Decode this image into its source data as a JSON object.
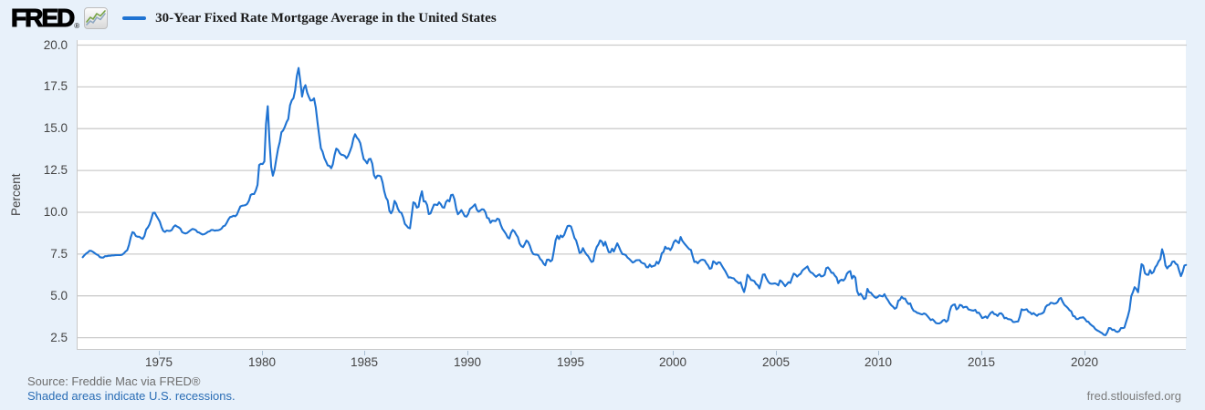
{
  "header": {
    "logo_text": "FRED",
    "logo_reg": "®",
    "legend_label": "30-Year Fixed Rate Mortgage Average in the United States"
  },
  "footer": {
    "source": "Source: Freddie Mac via FRED®",
    "note": "Shaded areas indicate U.S. recessions.",
    "site": "fred.stlouisfed.org"
  },
  "colors": {
    "line_blue": "#1f73d2",
    "link_blue": "#2a6db5",
    "background": "#e8f1fa",
    "grid": "#cccccc",
    "axis_text": "#444444"
  },
  "chart_data": {
    "type": "line",
    "title": "30-Year Fixed Rate Mortgage Average in the United States",
    "ylabel": "Percent",
    "xlabel": "",
    "grid": "horizontal",
    "legend_position": "top-left",
    "xlim": [
      1971.0,
      2024.95
    ],
    "ylim": [
      1.77,
      20.3
    ],
    "yticks": [
      "2.5",
      "5.0",
      "7.5",
      "10.0",
      "12.5",
      "15.0",
      "17.5",
      "20.0"
    ],
    "xticks": [
      "1975",
      "1980",
      "1985",
      "1990",
      "1995",
      "2000",
      "2005",
      "2010",
      "2015",
      "2020"
    ],
    "series": [
      {
        "name": "30-Year Fixed Rate Mortgage Average in the United States",
        "color": "#1f73d2",
        "units": "Percent",
        "start_year": 1971.25,
        "interval_years": 0.0833333,
        "values": [
          7.31,
          7.43,
          7.53,
          7.6,
          7.7,
          7.69,
          7.63,
          7.55,
          7.48,
          7.44,
          7.32,
          7.29,
          7.29,
          7.37,
          7.37,
          7.4,
          7.4,
          7.42,
          7.42,
          7.43,
          7.44,
          7.44,
          7.44,
          7.46,
          7.54,
          7.65,
          7.73,
          8.05,
          8.5,
          8.81,
          8.77,
          8.58,
          8.54,
          8.54,
          8.46,
          8.41,
          8.58,
          8.97,
          9.09,
          9.28,
          9.59,
          9.96,
          9.98,
          9.79,
          9.62,
          9.43,
          9.1,
          8.89,
          8.82,
          8.91,
          8.89,
          8.89,
          8.94,
          9.13,
          9.22,
          9.15,
          9.1,
          9.02,
          8.81,
          8.76,
          8.73,
          8.77,
          8.85,
          8.93,
          9.0,
          8.98,
          8.93,
          8.81,
          8.79,
          8.72,
          8.67,
          8.69,
          8.75,
          8.83,
          8.86,
          8.94,
          8.94,
          8.9,
          8.92,
          8.92,
          8.96,
          9.02,
          9.16,
          9.2,
          9.36,
          9.57,
          9.71,
          9.74,
          9.79,
          9.76,
          9.86,
          10.11,
          10.35,
          10.39,
          10.41,
          10.43,
          10.5,
          10.69,
          11.04,
          11.09,
          11.09,
          11.3,
          11.64,
          12.83,
          12.9,
          12.88,
          13.04,
          15.28,
          16.35,
          14.26,
          12.71,
          12.19,
          12.56,
          13.2,
          13.79,
          14.21,
          14.79,
          14.9,
          15.13,
          15.4,
          15.58,
          16.4,
          16.7,
          16.83,
          17.29,
          18.16,
          18.63,
          17.83,
          16.92,
          17.4,
          17.6,
          17.16,
          16.89,
          16.68,
          16.7,
          16.82,
          16.27,
          15.43,
          14.61,
          13.83,
          13.62,
          13.25,
          13.04,
          12.8,
          12.78,
          12.63,
          12.87,
          13.42,
          13.81,
          13.73,
          13.54,
          13.44,
          13.42,
          13.37,
          13.23,
          13.39,
          13.65,
          13.94,
          14.42,
          14.67,
          14.47,
          14.35,
          14.13,
          13.64,
          13.18,
          13.08,
          12.92,
          13.17,
          13.2,
          12.91,
          12.22,
          12.03,
          12.19,
          12.19,
          12.14,
          11.78,
          11.26,
          10.88,
          10.71,
          10.08,
          9.94,
          10.14,
          10.68,
          10.51,
          10.2,
          10.01,
          9.97,
          9.7,
          9.31,
          9.2,
          9.08,
          9.04,
          9.83,
          10.6,
          10.54,
          10.28,
          10.33,
          10.89,
          11.26,
          10.65,
          10.65,
          10.43,
          9.89,
          9.93,
          10.2,
          10.46,
          10.46,
          10.43,
          10.6,
          10.48,
          10.3,
          10.27,
          10.61,
          10.73,
          10.65,
          11.03,
          11.05,
          10.77,
          10.2,
          9.88,
          9.99,
          10.13,
          9.95,
          9.77,
          9.74,
          9.9,
          10.2,
          10.27,
          10.37,
          10.48,
          10.16,
          10.04,
          10.1,
          10.18,
          10.17,
          10.01,
          9.67,
          9.64,
          9.37,
          9.5,
          9.49,
          9.47,
          9.62,
          9.58,
          9.24,
          9.01,
          8.86,
          8.71,
          8.5,
          8.43,
          8.76,
          8.94,
          8.85,
          8.67,
          8.51,
          8.13,
          7.98,
          7.92,
          8.09,
          8.31,
          8.22,
          7.99,
          7.68,
          7.5,
          7.47,
          7.47,
          7.42,
          7.21,
          7.11,
          6.92,
          6.83,
          7.16,
          7.17,
          7.06,
          7.15,
          7.68,
          8.32,
          8.6,
          8.4,
          8.61,
          8.51,
          8.64,
          8.93,
          9.17,
          9.2,
          9.15,
          8.83,
          8.46,
          8.32,
          7.96,
          7.57,
          7.61,
          7.86,
          7.64,
          7.48,
          7.38,
          7.2,
          7.03,
          7.08,
          7.62,
          7.93,
          8.07,
          8.32,
          8.25,
          8.0,
          8.23,
          7.92,
          7.62,
          7.6,
          7.82,
          7.65,
          7.9,
          8.14,
          7.94,
          7.69,
          7.5,
          7.48,
          7.43,
          7.29,
          7.21,
          7.1,
          6.99,
          7.04,
          7.13,
          7.14,
          7.14,
          7.0,
          6.95,
          6.92,
          6.72,
          6.71,
          6.87,
          6.74,
          6.79,
          6.81,
          7.04,
          6.92,
          7.15,
          7.55,
          7.63,
          7.94,
          7.82,
          7.85,
          7.74,
          7.91,
          8.21,
          8.33,
          8.24,
          8.15,
          8.52,
          8.29,
          8.15,
          8.03,
          7.91,
          7.8,
          7.75,
          7.38,
          7.03,
          7.05,
          6.95,
          7.08,
          7.15,
          7.16,
          7.13,
          6.95,
          6.82,
          6.62,
          6.66,
          7.07,
          7.0,
          6.89,
          7.01,
          6.99,
          6.81,
          6.65,
          6.49,
          6.29,
          6.09,
          6.11,
          6.07,
          6.05,
          5.92,
          5.84,
          5.75,
          5.81,
          5.48,
          5.23,
          5.63,
          6.26,
          6.15,
          5.95,
          5.93,
          5.88,
          5.71,
          5.64,
          5.45,
          5.83,
          6.27,
          6.29,
          6.06,
          5.87,
          5.75,
          5.72,
          5.73,
          5.75,
          5.71,
          5.63,
          5.93,
          5.86,
          5.72,
          5.58,
          5.7,
          5.82,
          5.77,
          6.07,
          6.33,
          6.27,
          6.15,
          6.25,
          6.32,
          6.51,
          6.6,
          6.68,
          6.76,
          6.52,
          6.4,
          6.36,
          6.24,
          6.14,
          6.22,
          6.29,
          6.16,
          6.18,
          6.26,
          6.66,
          6.7,
          6.57,
          6.38,
          6.38,
          6.21,
          6.1,
          5.76,
          5.92,
          5.97,
          5.92,
          6.04,
          6.32,
          6.43,
          6.48,
          6.04,
          6.2,
          6.09,
          5.29,
          5.05,
          5.13,
          5.0,
          4.81,
          4.86,
          5.42,
          5.22,
          5.19,
          5.06,
          4.95,
          4.88,
          4.93,
          5.03,
          4.99,
          4.97,
          5.1,
          4.89,
          4.74,
          4.56,
          4.43,
          4.35,
          4.23,
          4.3,
          4.71,
          4.76,
          4.95,
          4.84,
          4.84,
          4.64,
          4.51,
          4.55,
          4.27,
          4.11,
          4.07,
          3.99,
          3.96,
          3.92,
          3.89,
          3.95,
          3.91,
          3.8,
          3.68,
          3.55,
          3.6,
          3.5,
          3.38,
          3.35,
          3.35,
          3.41,
          3.53,
          3.57,
          3.45,
          3.54,
          4.07,
          4.37,
          4.46,
          4.49,
          4.19,
          4.26,
          4.46,
          4.43,
          4.3,
          4.34,
          4.34,
          4.19,
          4.16,
          4.13,
          4.12,
          4.16,
          3.98,
          4.0,
          3.86,
          3.67,
          3.71,
          3.77,
          3.67,
          3.84,
          3.98,
          4.05,
          3.91,
          3.89,
          3.8,
          3.94,
          3.96,
          3.87,
          3.66,
          3.69,
          3.61,
          3.6,
          3.57,
          3.44,
          3.44,
          3.46,
          3.47,
          3.77,
          4.2,
          4.15,
          4.17,
          4.2,
          4.05,
          4.01,
          3.9,
          3.97,
          3.88,
          3.81,
          3.9,
          3.92,
          3.95,
          4.03,
          4.33,
          4.44,
          4.47,
          4.59,
          4.57,
          4.53,
          4.55,
          4.63,
          4.83,
          4.87,
          4.64,
          4.46,
          4.37,
          4.27,
          4.14,
          4.07,
          3.8,
          3.77,
          3.62,
          3.61,
          3.69,
          3.7,
          3.72,
          3.62,
          3.47,
          3.45,
          3.31,
          3.23,
          3.16,
          3.02,
          2.94,
          2.89,
          2.83,
          2.77,
          2.67,
          2.65,
          2.81,
          3.08,
          3.06,
          2.96,
          2.98,
          2.87,
          2.84,
          2.9,
          3.07,
          3.07,
          3.1,
          3.45,
          3.76,
          4.17,
          4.98,
          5.23,
          5.52,
          5.41,
          5.22,
          6.11,
          6.9,
          6.81,
          6.36,
          6.27,
          6.26,
          6.54,
          6.34,
          6.43,
          6.71,
          6.84,
          7.07,
          7.2,
          7.79,
          7.44,
          6.82,
          6.64,
          6.78,
          6.82,
          7.04,
          7.06,
          6.92,
          6.85,
          6.5,
          6.18,
          6.43,
          6.81,
          6.85
        ]
      }
    ]
  }
}
